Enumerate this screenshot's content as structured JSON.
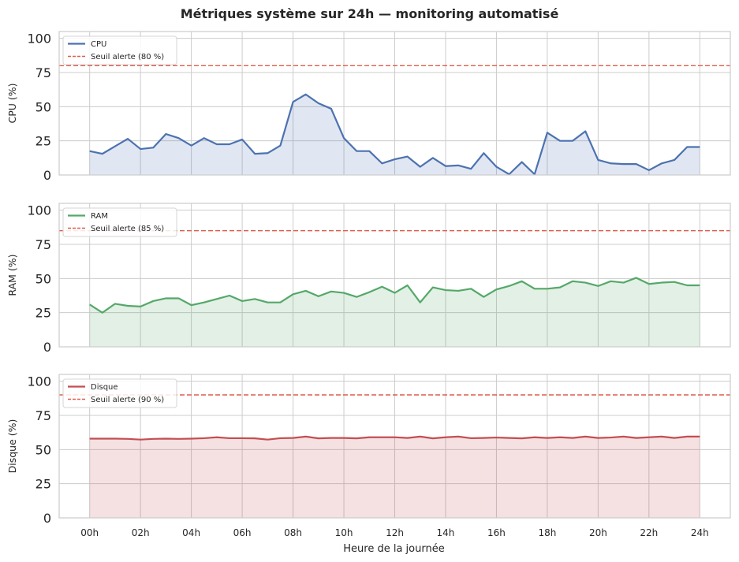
{
  "chart_data": {
    "type": "line",
    "title": "Métriques système sur 24h — monitoring automatisé",
    "xlabel": "Heure de la journée",
    "x_tick_labels": [
      "00h",
      "02h",
      "04h",
      "06h",
      "08h",
      "10h",
      "12h",
      "14h",
      "16h",
      "18h",
      "20h",
      "22h",
      "24h"
    ],
    "x_ticks": [
      0,
      2,
      4,
      6,
      8,
      10,
      12,
      14,
      16,
      18,
      20,
      22,
      24
    ],
    "xlim": [
      -1.2,
      25.2
    ],
    "x": [
      0,
      0.5,
      1,
      1.5,
      2,
      2.5,
      3,
      3.5,
      4,
      4.5,
      5,
      5.5,
      6,
      6.5,
      7,
      7.5,
      8,
      8.5,
      9,
      9.5,
      10,
      10.5,
      11,
      11.5,
      12,
      12.5,
      13,
      13.5,
      14,
      14.5,
      15,
      15.5,
      16,
      16.5,
      17,
      17.5,
      18,
      18.5,
      19,
      19.5,
      20,
      20.5,
      21,
      21.5,
      22,
      22.5,
      23,
      23.5,
      24
    ],
    "panels": [
      {
        "ylabel": "CPU (%)",
        "ylim": [
          0,
          105
        ],
        "y_ticks": [
          0,
          25,
          50,
          75,
          100
        ],
        "series": [
          {
            "name": "CPU",
            "color": "#4c72b0",
            "fill": "#4c72b0",
            "values": [
              17.5,
              15.5,
              21,
              26.5,
              19,
              20,
              30,
              27,
              21.5,
              27,
              22.5,
              22.5,
              26,
              15.5,
              16,
              21.5,
              53.5,
              59,
              52.5,
              48.5,
              27,
              17.5,
              17.5,
              8.5,
              11.5,
              13.5,
              6,
              12.5,
              6.5,
              7,
              4.5,
              16,
              6,
              0.5,
              9.5,
              0.5,
              31,
              25,
              25,
              32,
              11,
              8.5,
              8,
              8,
              3.5,
              8.5,
              11,
              20.5,
              20.5
            ]
          }
        ],
        "threshold": {
          "name": "Seuil alerte (80 %)",
          "value": 80,
          "color": "#dd5d4a"
        }
      },
      {
        "ylabel": "RAM (%)",
        "ylim": [
          0,
          105
        ],
        "y_ticks": [
          0,
          25,
          50,
          75,
          100
        ],
        "series": [
          {
            "name": "RAM",
            "color": "#55a868",
            "fill": "#55a868",
            "values": [
              31,
              25,
              31.5,
              30,
              29.5,
              33.5,
              35.5,
              35.5,
              30.5,
              32.5,
              35,
              37.5,
              33.5,
              35,
              32.5,
              32.5,
              38.5,
              41,
              37,
              40.5,
              39.5,
              36.5,
              40,
              44,
              39.5,
              45,
              32.5,
              43.5,
              41.5,
              41,
              42.5,
              36.5,
              42,
              44.5,
              48,
              42.5,
              42.5,
              43.5,
              48,
              47,
              44.5,
              48,
              47,
              50.5,
              46,
              47,
              47.5,
              45,
              45
            ]
          }
        ],
        "threshold": {
          "name": "Seuil alerte (85 %)",
          "value": 85,
          "color": "#dd5d4a"
        }
      },
      {
        "ylabel": "Disque (%)",
        "ylim": [
          0,
          105
        ],
        "y_ticks": [
          0,
          25,
          50,
          75,
          100
        ],
        "series": [
          {
            "name": "Disque",
            "color": "#c44e52",
            "fill": "#c44e52",
            "values": [
              58,
              58,
              58,
              57.8,
              57.3,
              57.8,
              58,
              57.8,
              58,
              58.3,
              59,
              58.3,
              58.3,
              58.2,
              57.3,
              58.3,
              58.5,
              59.5,
              58.2,
              58.5,
              58.5,
              58.2,
              59,
              59,
              59,
              58.5,
              59.5,
              58.2,
              59,
              59.5,
              58.3,
              58.5,
              58.8,
              58.5,
              58.2,
              59,
              58.5,
              59,
              58.5,
              59.5,
              58.5,
              58.8,
              59.5,
              58.5,
              59,
              59.5,
              58.5,
              59.5,
              59.5
            ]
          }
        ],
        "threshold": {
          "name": "Seuil alerte (90 %)",
          "value": 90,
          "color": "#dd5d4a"
        }
      }
    ]
  }
}
